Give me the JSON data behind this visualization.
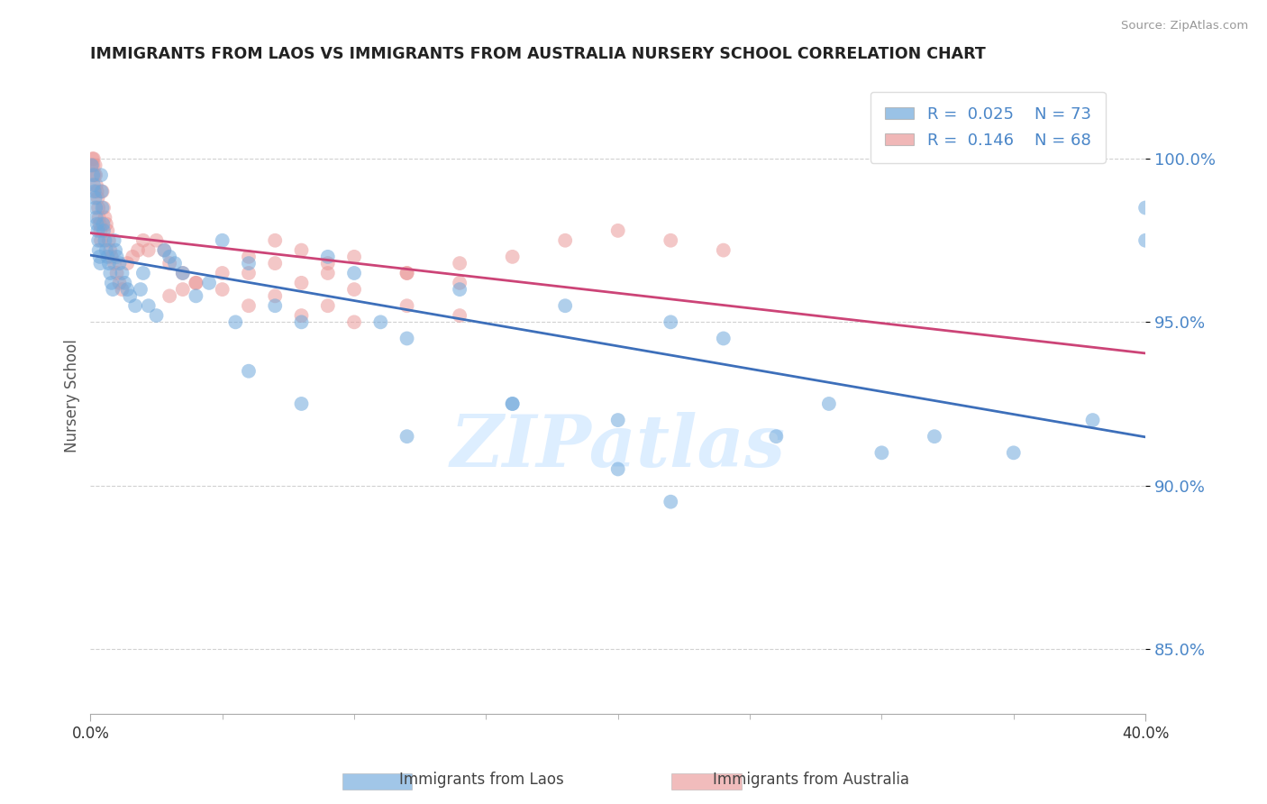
{
  "title": "IMMIGRANTS FROM LAOS VS IMMIGRANTS FROM AUSTRALIA NURSERY SCHOOL CORRELATION CHART",
  "source": "Source: ZipAtlas.com",
  "ylabel": "Nursery School",
  "yticks": [
    85.0,
    90.0,
    95.0,
    100.0
  ],
  "ytick_labels": [
    "85.0%",
    "90.0%",
    "95.0%",
    "100.0%"
  ],
  "xlim": [
    0.0,
    40.0
  ],
  "ylim": [
    83.0,
    102.5
  ],
  "blue_label": "Immigrants from Laos",
  "pink_label": "Immigrants from Australia",
  "blue_R": "0.025",
  "blue_N": "73",
  "pink_R": "0.146",
  "pink_N": "68",
  "blue_color": "#6fa8dc",
  "pink_color": "#ea9999",
  "blue_line_color": "#3d6fba",
  "pink_line_color": "#cc4477",
  "watermark_color": "#ddeeff",
  "seed": 123,
  "blue_x": [
    0.05,
    0.1,
    0.12,
    0.15,
    0.18,
    0.2,
    0.22,
    0.25,
    0.28,
    0.3,
    0.32,
    0.35,
    0.38,
    0.4,
    0.42,
    0.45,
    0.48,
    0.5,
    0.55,
    0.6,
    0.65,
    0.7,
    0.75,
    0.8,
    0.85,
    0.9,
    0.95,
    1.0,
    1.1,
    1.2,
    1.3,
    1.4,
    1.5,
    1.7,
    1.9,
    2.0,
    2.2,
    2.5,
    2.8,
    3.0,
    3.2,
    3.5,
    4.0,
    4.5,
    5.0,
    5.5,
    6.0,
    7.0,
    8.0,
    9.0,
    10.0,
    11.0,
    12.0,
    14.0,
    16.0,
    18.0,
    20.0,
    22.0,
    24.0,
    26.0,
    28.0,
    30.0,
    32.0,
    35.0,
    38.0,
    40.0,
    6.0,
    8.0,
    12.0,
    16.0,
    20.0,
    22.0,
    40.0
  ],
  "blue_y": [
    99.8,
    99.5,
    99.2,
    99.0,
    98.8,
    98.5,
    98.2,
    98.0,
    97.8,
    97.5,
    97.2,
    97.0,
    96.8,
    99.5,
    99.0,
    98.5,
    98.0,
    97.8,
    97.5,
    97.2,
    97.0,
    96.8,
    96.5,
    96.2,
    96.0,
    97.5,
    97.2,
    97.0,
    96.8,
    96.5,
    96.2,
    96.0,
    95.8,
    95.5,
    96.0,
    96.5,
    95.5,
    95.2,
    97.2,
    97.0,
    96.8,
    96.5,
    95.8,
    96.2,
    97.5,
    95.0,
    96.8,
    95.5,
    95.0,
    97.0,
    96.5,
    95.0,
    94.5,
    96.0,
    92.5,
    95.5,
    92.0,
    95.0,
    94.5,
    91.5,
    92.5,
    91.0,
    91.5,
    91.0,
    92.0,
    98.5,
    93.5,
    92.5,
    91.5,
    92.5,
    90.5,
    89.5,
    97.5
  ],
  "pink_x": [
    0.05,
    0.08,
    0.1,
    0.12,
    0.15,
    0.18,
    0.2,
    0.22,
    0.25,
    0.28,
    0.3,
    0.32,
    0.35,
    0.38,
    0.4,
    0.45,
    0.5,
    0.55,
    0.6,
    0.65,
    0.7,
    0.75,
    0.8,
    0.9,
    1.0,
    1.1,
    1.2,
    1.4,
    1.6,
    1.8,
    2.0,
    2.2,
    2.5,
    2.8,
    3.0,
    3.5,
    4.0,
    5.0,
    6.0,
    7.0,
    8.0,
    9.0,
    10.0,
    12.0,
    14.0,
    16.0,
    18.0,
    20.0,
    22.0,
    24.0,
    3.0,
    3.5,
    4.0,
    5.0,
    6.0,
    7.0,
    8.0,
    9.0,
    10.0,
    12.0,
    14.0,
    6.0,
    7.0,
    8.0,
    9.0,
    10.0,
    12.0,
    14.0
  ],
  "pink_y": [
    99.8,
    100.0,
    99.8,
    100.0,
    99.5,
    99.8,
    99.5,
    99.2,
    99.0,
    98.8,
    98.5,
    98.2,
    98.0,
    97.8,
    97.5,
    99.0,
    98.5,
    98.2,
    98.0,
    97.8,
    97.5,
    97.2,
    97.0,
    96.8,
    96.5,
    96.2,
    96.0,
    96.8,
    97.0,
    97.2,
    97.5,
    97.2,
    97.5,
    97.2,
    96.8,
    96.5,
    96.2,
    96.5,
    97.0,
    97.5,
    97.2,
    96.8,
    97.0,
    96.5,
    96.2,
    97.0,
    97.5,
    97.8,
    97.5,
    97.2,
    95.8,
    96.0,
    96.2,
    96.0,
    95.5,
    95.8,
    95.2,
    95.5,
    95.0,
    95.5,
    95.2,
    96.5,
    96.8,
    96.2,
    96.5,
    96.0,
    96.5,
    96.8
  ]
}
